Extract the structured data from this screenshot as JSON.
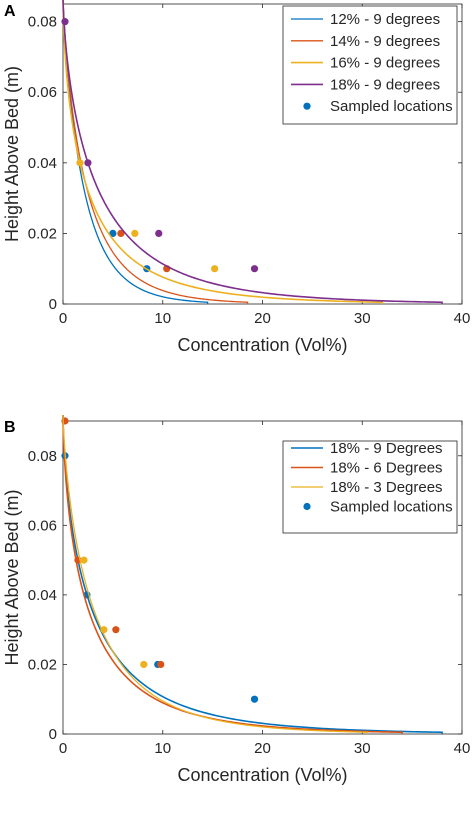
{
  "chart_data": [
    {
      "panel_label": "A",
      "type": "line",
      "xlabel": "Concentration (Vol%)",
      "ylabel": "Height Above Bed (m)",
      "xlim": [
        0,
        40
      ],
      "ylim": [
        0,
        0.085
      ],
      "xticks": [
        "0",
        "10",
        "20",
        "30",
        "40"
      ],
      "yticks": [
        "0",
        "0.02",
        "0.04",
        "0.06",
        "0.08"
      ],
      "legend_position": "top-right",
      "series": [
        {
          "name": "12% - 9 degrees",
          "color": "#0072BD",
          "width": 1.3,
          "curve": {
            "x_at_bed": 14.5,
            "x_at_0_04": 1.6
          },
          "points": [
            [
              5.0,
              0.02
            ],
            [
              8.4,
              0.01
            ]
          ]
        },
        {
          "name": "14% - 9 degrees",
          "color": "#D95319",
          "width": 1.3,
          "curve": {
            "x_at_bed": 18.5,
            "x_at_0_04": 1.8
          },
          "points": [
            [
              5.8,
              0.02
            ],
            [
              10.4,
              0.01
            ]
          ]
        },
        {
          "name": "16% - 9 degrees",
          "color": "#EDB120",
          "width": 1.6,
          "curve": {
            "x_at_bed": 32.0,
            "x_at_0_04": 1.7
          },
          "points": [
            [
              1.7,
              0.04
            ],
            [
              7.2,
              0.02
            ],
            [
              15.2,
              0.01
            ]
          ]
        },
        {
          "name": "18% - 9 degrees",
          "color": "#7E2F8E",
          "width": 1.6,
          "curve": {
            "x_at_bed": 38.0,
            "x_at_0_04": 2.5
          },
          "points": [
            [
              0.2,
              0.08
            ],
            [
              2.5,
              0.04
            ],
            [
              9.6,
              0.02
            ],
            [
              19.2,
              0.01
            ]
          ]
        }
      ],
      "marker_legend": {
        "name": "Sampled locations",
        "color": "#0072BD"
      }
    },
    {
      "panel_label": "B",
      "type": "line",
      "xlabel": "Concentration (Vol%)",
      "ylabel": "Height Above Bed (m)",
      "xlim": [
        0,
        40
      ],
      "ylim": [
        0,
        0.09
      ],
      "xticks": [
        "0",
        "10",
        "20",
        "30",
        "40"
      ],
      "yticks": [
        "0",
        "0.02",
        "0.04",
        "0.06",
        "0.08"
      ],
      "legend_position": "top-right",
      "series": [
        {
          "name": "18% - 9 Degrees",
          "color": "#0072BD",
          "width": 1.6,
          "curve": {
            "x_at_bed": 38.0,
            "x_at_0_04": 2.4
          },
          "points": [
            [
              0.2,
              0.08
            ],
            [
              2.4,
              0.04
            ],
            [
              9.5,
              0.02
            ],
            [
              19.2,
              0.01
            ]
          ]
        },
        {
          "name": "18% - 6 Degrees",
          "color": "#D95319",
          "width": 1.6,
          "curve": {
            "x_at_bed": 34.0,
            "x_at_0_04": 2.1
          },
          "points": [
            [
              0.2,
              0.09
            ],
            [
              1.5,
              0.05
            ],
            [
              5.3,
              0.03
            ],
            [
              9.8,
              0.02
            ]
          ]
        },
        {
          "name": "18% - 3 Degrees",
          "color": "#EDB120",
          "width": 1.3,
          "curve": {
            "x_at_bed": 30.5,
            "x_at_0_04": 2.6
          },
          "points": [
            [
              2.1,
              0.05
            ],
            [
              4.1,
              0.03
            ],
            [
              8.1,
              0.02
            ]
          ]
        }
      ],
      "marker_legend": {
        "name": "Sampled locations",
        "color": "#0072BD"
      }
    }
  ]
}
